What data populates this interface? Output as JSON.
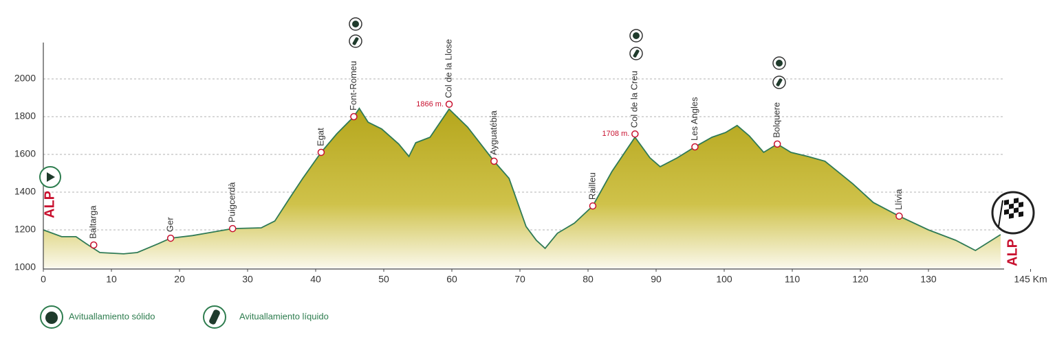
{
  "chart_data": {
    "type": "area",
    "color": "#2f7a55",
    "fill": "#c2b52a",
    "grid": true,
    "xlim": [
      0,
      145
    ],
    "ylim": [
      1000,
      2200
    ],
    "xticks": [
      0,
      10,
      20,
      30,
      40,
      50,
      60,
      70,
      80,
      90,
      100,
      110,
      120,
      130,
      {
        "value": 145,
        "label": "145 Km"
      }
    ],
    "yticks": [
      1000,
      1200,
      1400,
      1600,
      1800,
      2000
    ],
    "x": [
      0,
      2.7,
      4.8,
      6.3,
      8.3,
      11.8,
      13.8,
      16.9,
      18.7,
      21.9,
      23.9,
      27.8,
      32.0,
      34.0,
      36.1,
      38.1,
      40.8,
      43.1,
      45.6,
      46.4,
      47.7,
      49.7,
      52.2,
      53.7,
      54.7,
      56.8,
      59.6,
      62.3,
      66.2,
      68.4,
      70.9,
      72.4,
      73.7,
      75.5,
      78.0,
      80.7,
      83.5,
      86.9,
      89.1,
      90.6,
      93.1,
      95.7,
      98.2,
      100.2,
      101.9,
      103.7,
      105.8,
      107.8,
      109.8,
      112.3,
      114.8,
      118.9,
      121.9,
      125.7,
      130.0,
      134.0,
      136.9,
      140.6
    ],
    "values": [
      1200,
      1164,
      1164,
      1127,
      1080,
      1073,
      1080,
      1127,
      1156,
      1170,
      1182,
      1207,
      1211,
      1247,
      1364,
      1473,
      1611,
      1709,
      1800,
      1844,
      1771,
      1735,
      1655,
      1589,
      1662,
      1691,
      1840,
      1745,
      1564,
      1473,
      1218,
      1145,
      1102,
      1182,
      1236,
      1327,
      1509,
      1691,
      1582,
      1535,
      1582,
      1640,
      1691,
      1716,
      1753,
      1698,
      1611,
      1655,
      1611,
      1589,
      1564,
      1444,
      1345,
      1273,
      1200,
      1145,
      1091,
      1175
    ],
    "waypoints": [
      {
        "name": "Baltarga",
        "x": 7.4,
        "value": 1120
      },
      {
        "name": "Ger",
        "x": 18.7,
        "value": 1156
      },
      {
        "name": "Puigcerdà",
        "x": 27.8,
        "value": 1207
      },
      {
        "name": "Egat",
        "x": 40.8,
        "value": 1611
      },
      {
        "name": "Font-Romeu",
        "x": 45.6,
        "value": 1800
      },
      {
        "name": "Col de la Llose",
        "x": 59.6,
        "value": 1866,
        "value_label": "1866 m."
      },
      {
        "name": "Ayguatébia",
        "x": 66.2,
        "value": 1564
      },
      {
        "name": "Railleu",
        "x": 80.7,
        "value": 1327
      },
      {
        "name": "Col de la Creu",
        "x": 86.9,
        "value": 1708,
        "value_label": "1708 m."
      },
      {
        "name": "Les Angles",
        "x": 95.7,
        "value": 1640
      },
      {
        "name": "Bolquere",
        "x": 107.8,
        "value": 1655
      },
      {
        "name": "Llívia",
        "x": 125.7,
        "value": 1273
      }
    ],
    "start_label": "ALP",
    "finish_label": "ALP",
    "legend": [
      "Avituallamiento sólido",
      "Avituallamiento líquido"
    ]
  }
}
